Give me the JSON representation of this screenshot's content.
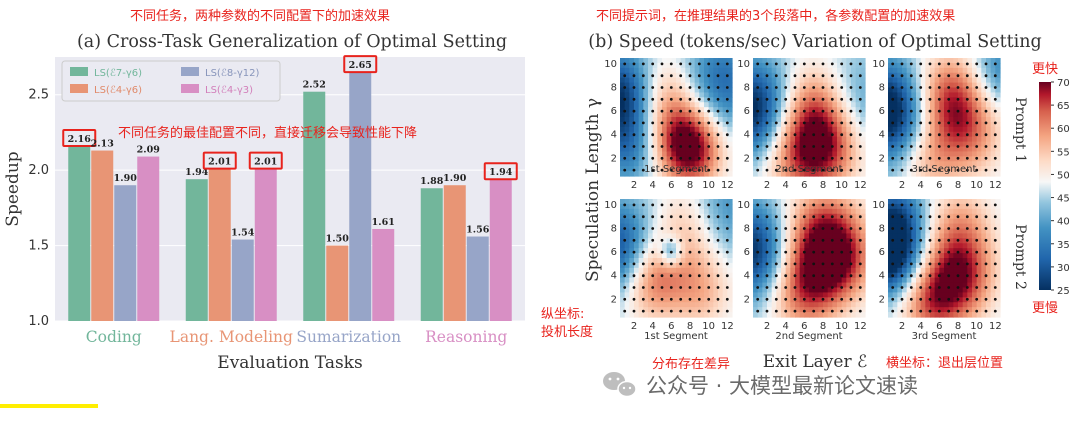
{
  "annotations": {
    "top_left": "不同任务，两种参数的不同配置下的加速效果",
    "top_right": "不同提示词，在推理结果的3个段落中，各参数配置的加速效果",
    "middle_left": "不同任务的最佳配置不同，直接迁移会导致性能下降",
    "faster": "更快",
    "slower": "更慢",
    "y_note_line1": "纵坐标:",
    "y_note_line2": "投机长度",
    "x_note": "横坐标：退出层位置",
    "dist_note": "分布存在差异"
  },
  "watermark": "公众号 · 大模型最新论文速读",
  "colors": {
    "ls1": "#72b69b",
    "ls2": "#e89575",
    "ls3": "#97a5c8",
    "ls4": "#d88fc4",
    "annotation_red": "#e8231d",
    "highlight_yellow": "#ffee00"
  },
  "chart_data": [
    {
      "type": "bar",
      "title": "(a) Cross-Task Generalization of Optimal Setting",
      "xlabel": "Evaluation Tasks",
      "ylabel": "Speedup",
      "categories": [
        "Coding",
        "Lang. Modeling",
        "Sumarization",
        "Reasoning"
      ],
      "category_colors": [
        "#72b69b",
        "#e89575",
        "#97a5c8",
        "#d88fc4"
      ],
      "ylim": [
        1.0,
        2.75
      ],
      "yticks": [
        "1.0",
        "1.5",
        "2.0",
        "2.5"
      ],
      "legend_position": "top-left",
      "series": [
        {
          "name": "LS(ℰ7-γ6)",
          "color": "#72b69b",
          "values": [
            2.16,
            1.94,
            2.52,
            1.88
          ]
        },
        {
          "name": "LS(ℰ4-γ6)",
          "color": "#e89575",
          "values": [
            2.13,
            2.01,
            1.5,
            1.9
          ]
        },
        {
          "name": "LS(ℰ8-γ12)",
          "color": "#97a5c8",
          "values": [
            1.9,
            1.54,
            2.65,
            1.56
          ]
        },
        {
          "name": "LS(ℰ4-γ3)",
          "color": "#d88fc4",
          "values": [
            2.09,
            2.01,
            1.61,
            1.94
          ]
        }
      ],
      "value_labels": [
        [
          "2.16",
          "1.94",
          "2.52",
          "1.88"
        ],
        [
          "2.13",
          "2.01",
          "1.50",
          "1.90"
        ],
        [
          "1.90",
          "1.54",
          "2.65",
          "1.56"
        ],
        [
          "2.09",
          "2.01",
          "1.61",
          "1.94"
        ]
      ],
      "highlighted": [
        {
          "series": 0,
          "category": 0
        },
        {
          "series": 1,
          "category": 1
        },
        {
          "series": 3,
          "category": 1
        },
        {
          "series": 2,
          "category": 2
        },
        {
          "series": 3,
          "category": 3
        }
      ]
    },
    {
      "type": "heatmap",
      "title": "(b) Speed (tokens/sec) Variation of Optimal Setting",
      "xlabel": "Exit Layer ℰ",
      "ylabel": "Speculation Length γ",
      "row_labels": [
        "Prompt 1",
        "Prompt 2"
      ],
      "col_labels": [
        "1st Segment",
        "2nd Segment",
        "3rd Segment"
      ],
      "x_range": [
        1,
        12
      ],
      "y_range": [
        1,
        10
      ],
      "xticks": [
        "2",
        "4",
        "6",
        "8",
        "10",
        "12"
      ],
      "yticks": [
        "2",
        "4",
        "6",
        "8",
        "10"
      ],
      "colorbar": {
        "min": 25,
        "max": 70,
        "ticks": [
          "25",
          "30",
          "35",
          "40",
          "45",
          "50",
          "55",
          "60",
          "65",
          "70"
        ]
      },
      "panels": [
        {
          "row": 0,
          "col": 0,
          "peaks": [
            [
              8,
              3,
              22,
              2.2
            ],
            [
              6,
              5,
              12,
              2.5
            ],
            [
              5,
              8,
              6,
              2
            ]
          ],
          "base": [
            [
              1,
              7,
              -22,
              2.5
            ],
            [
              11,
              8,
              -14,
              2.5
            ],
            [
              2,
              3,
              -10,
              2
            ]
          ]
        },
        {
          "row": 0,
          "col": 1,
          "peaks": [
            [
              6,
              3,
              20,
              2.8
            ],
            [
              9,
              4,
              14,
              2.5
            ],
            [
              7,
              7,
              8,
              2.2
            ]
          ],
          "base": [
            [
              1,
              6,
              -24,
              2.5
            ],
            [
              11,
              6,
              -10,
              2.5
            ]
          ]
        },
        {
          "row": 0,
          "col": 2,
          "peaks": [
            [
              7,
              7,
              18,
              2.5
            ],
            [
              9,
              4,
              12,
              2.5
            ],
            [
              5,
              2,
              8,
              2
            ]
          ],
          "base": [
            [
              1,
              6,
              -26,
              2.5
            ],
            [
              12,
              9,
              -10,
              2
            ]
          ]
        },
        {
          "row": 1,
          "col": 0,
          "peaks": [
            [
              4,
              4,
              18,
              2.3
            ],
            [
              8,
              8,
              10,
              2.5
            ],
            [
              9,
              3,
              10,
              2.2
            ]
          ],
          "base": [
            [
              1,
              6,
              -20,
              2.5
            ],
            [
              11,
              9,
              -10,
              2.5
            ],
            [
              6,
              6,
              -14,
              0.8
            ]
          ]
        },
        {
          "row": 1,
          "col": 1,
          "peaks": [
            [
              8,
              7,
              22,
              2.8
            ],
            [
              6,
              3,
              16,
              2.5
            ],
            [
              10,
              5,
              10,
              2.2
            ]
          ],
          "base": [
            [
              1,
              6,
              -22,
              2.5
            ]
          ]
        },
        {
          "row": 1,
          "col": 2,
          "peaks": [
            [
              8,
              4,
              20,
              2.5
            ],
            [
              5,
              2,
              14,
              2.2
            ],
            [
              8,
              8,
              10,
              2.5
            ]
          ],
          "base": [
            [
              1,
              6,
              -30,
              2.2
            ],
            [
              2,
              9,
              -10,
              2
            ]
          ]
        }
      ]
    }
  ]
}
